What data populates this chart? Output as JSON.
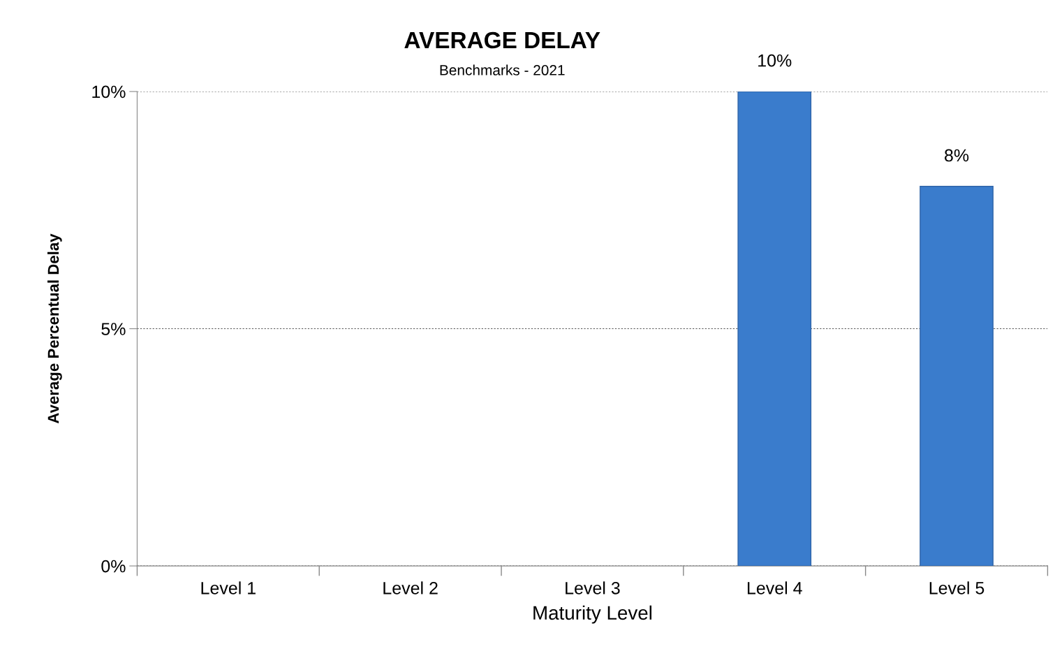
{
  "chart_data": {
    "type": "bar",
    "title": "AVERAGE DELAY",
    "subtitle": "Benchmarks - 2021",
    "xlabel": "Maturity Level",
    "ylabel": "Average Percentual Delay",
    "categories": [
      "Level 1",
      "Level 2",
      "Level 3",
      "Level 4",
      "Level 5"
    ],
    "values": [
      null,
      null,
      null,
      10,
      8
    ],
    "value_labels": [
      null,
      null,
      null,
      "10%",
      "8%"
    ],
    "color": "#3a7ccc",
    "ylim": [
      0,
      10
    ],
    "yticks": [
      {
        "value": 0,
        "label": "0%"
      },
      {
        "value": 5,
        "label": "5%"
      },
      {
        "value": 10,
        "label": "10%"
      }
    ],
    "grid": "y"
  }
}
